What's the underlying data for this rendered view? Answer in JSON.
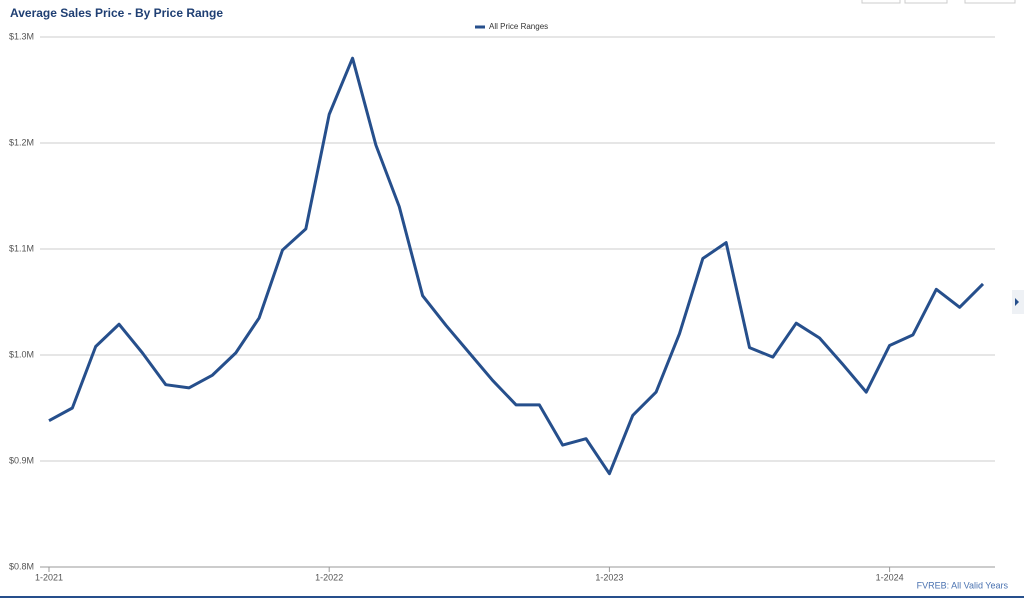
{
  "chart_data": {
    "type": "line",
    "title": "Average Sales Price - By Price Range",
    "categories": [
      "1-2021",
      null,
      null,
      null,
      null,
      null,
      null,
      null,
      null,
      null,
      null,
      null,
      "1-2022",
      null,
      null,
      null,
      null,
      null,
      null,
      null,
      null,
      null,
      null,
      null,
      "1-2023",
      null,
      null,
      null,
      null,
      null,
      null,
      null,
      null,
      null,
      null,
      null,
      "1-2024",
      null,
      null,
      null,
      null
    ],
    "series": [
      {
        "name": "All Price Ranges",
        "color": "#264f8c",
        "values": [
          938000,
          950000,
          1008000,
          1029000,
          1002000,
          972000,
          969000,
          981000,
          1002000,
          1035000,
          1099000,
          1119000,
          1227000,
          1280000,
          1198000,
          1140000,
          1056000,
          1028000,
          1002000,
          976000,
          953000,
          953000,
          915000,
          921000,
          888000,
          943000,
          965000,
          1020000,
          1091000,
          1106000,
          1007000,
          998000,
          1030000,
          1016000,
          991000,
          965000,
          1009000,
          1019000,
          1062000,
          1045000,
          1067000
        ]
      }
    ],
    "ylim": [
      800000,
      1300000
    ],
    "yticks": [
      {
        "value": 800000,
        "label": "$0.8M"
      },
      {
        "value": 900000,
        "label": "$0.9M"
      },
      {
        "value": 1000000,
        "label": "$1.0M"
      },
      {
        "value": 1100000,
        "label": "$1.1M"
      },
      {
        "value": 1200000,
        "label": "$1.2M"
      },
      {
        "value": 1300000,
        "label": "$1.3M"
      }
    ],
    "grid": true,
    "legend": "top",
    "source": "FVREB: All Valid Years"
  }
}
